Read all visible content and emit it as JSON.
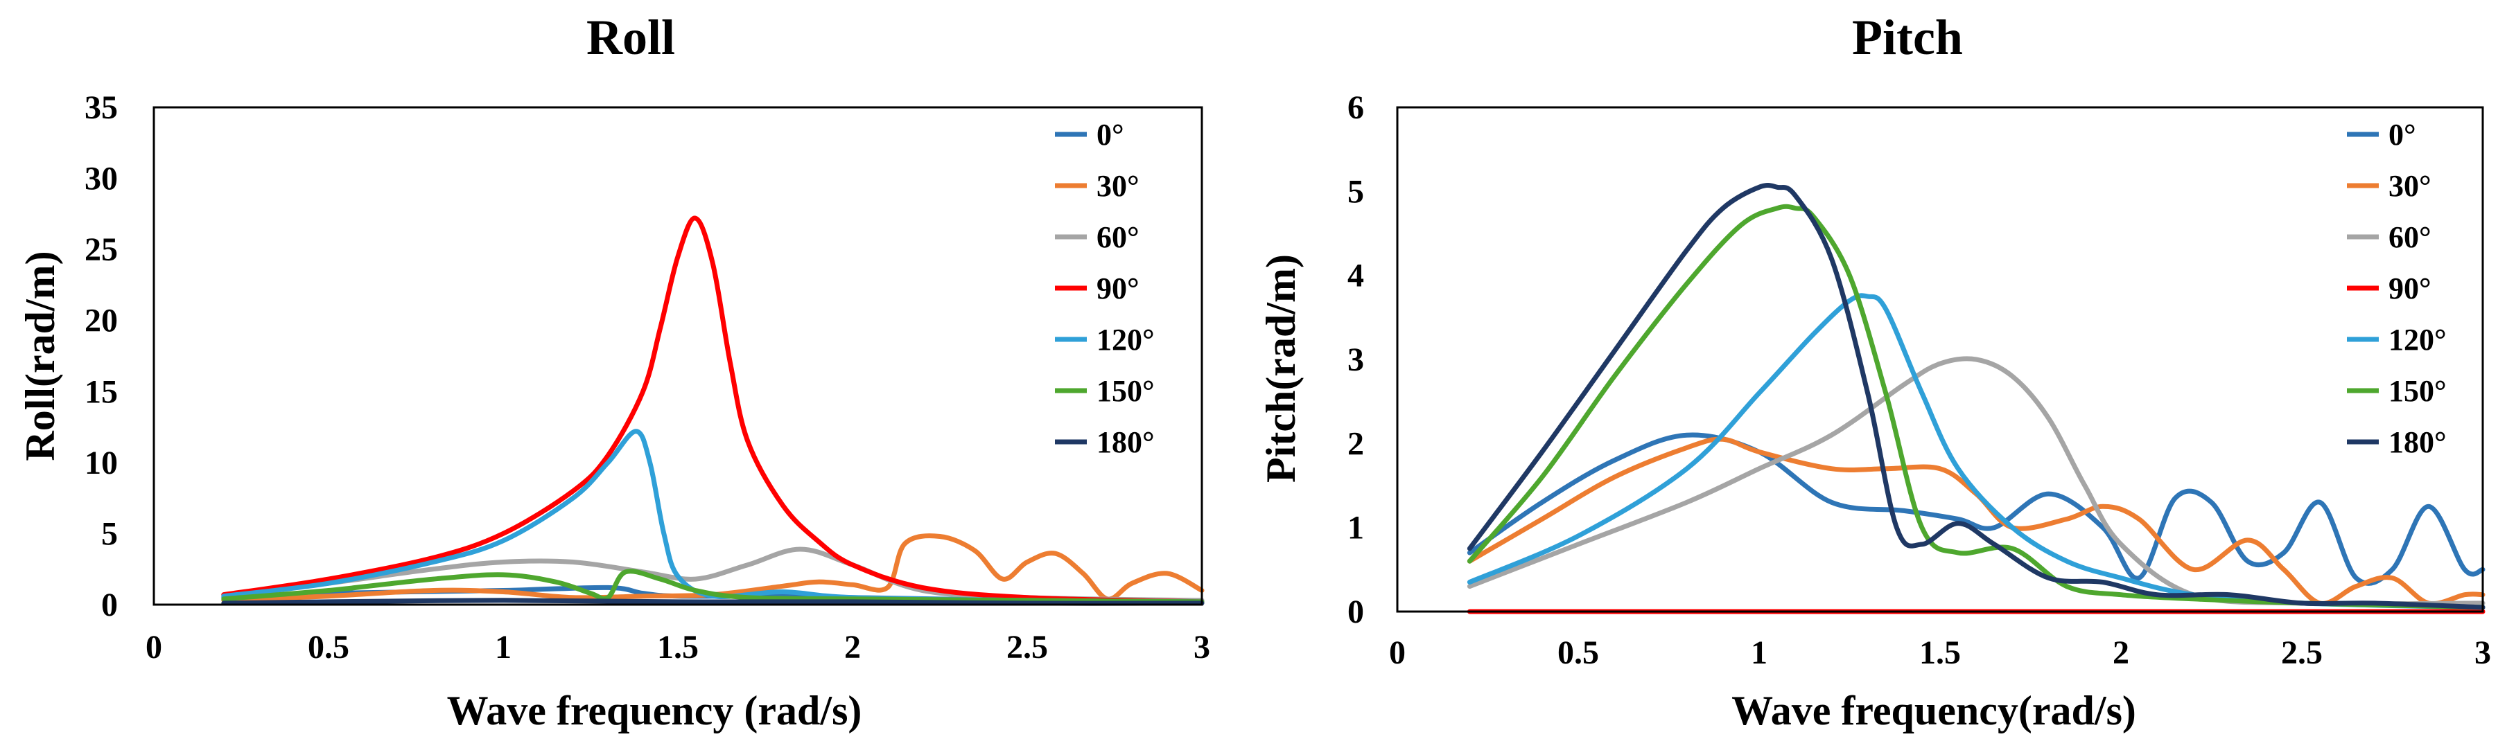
{
  "chart_data": [
    {
      "type": "line",
      "title": "Roll",
      "xlabel": "Wave frequency (rad/s)",
      "ylabel": "Roll(rad/m)",
      "xlim": [
        0,
        3
      ],
      "ylim": [
        0,
        35
      ],
      "xticks": [
        0,
        0.5,
        1,
        1.5,
        2,
        2.5,
        3
      ],
      "xtick_labels": [
        "0",
        "0.5",
        "1",
        "1.5",
        "2",
        "2.5",
        "3"
      ],
      "yticks": [
        0,
        5,
        10,
        15,
        20,
        25,
        30,
        35
      ],
      "ytick_labels": [
        "0",
        "5",
        "10",
        "15",
        "20",
        "25",
        "30",
        "35"
      ],
      "legend_position": "top-right",
      "grid": false,
      "series": [
        {
          "name": "0°",
          "color": "#2E75B6",
          "x": [
            0.2,
            0.5,
            1.0,
            1.3,
            1.4,
            1.5,
            1.8,
            2.0,
            2.5,
            3.0
          ],
          "y": [
            0.5,
            0.8,
            1.0,
            1.2,
            0.8,
            0.6,
            0.6,
            0.5,
            0.3,
            0.2
          ]
        },
        {
          "name": "30°",
          "color": "#ED7D31",
          "x": [
            0.2,
            0.5,
            0.8,
            1.0,
            1.2,
            1.4,
            1.6,
            1.8,
            1.9,
            2.0,
            2.1,
            2.15,
            2.25,
            2.35,
            2.43,
            2.5,
            2.58,
            2.66,
            2.73,
            2.8,
            2.9,
            3.0
          ],
          "y": [
            0.3,
            0.6,
            1.0,
            0.9,
            0.5,
            0.6,
            0.7,
            1.3,
            1.6,
            1.4,
            1.2,
            4.3,
            4.8,
            3.8,
            1.8,
            3.0,
            3.6,
            2.2,
            0.4,
            1.5,
            2.2,
            1.0
          ]
        },
        {
          "name": "60°",
          "color": "#A5A5A5",
          "x": [
            0.2,
            0.5,
            0.8,
            1.0,
            1.2,
            1.4,
            1.55,
            1.7,
            1.85,
            2.0,
            2.2,
            2.5,
            3.0
          ],
          "y": [
            0.6,
            1.5,
            2.5,
            3.0,
            3.0,
            2.3,
            1.8,
            2.8,
            3.9,
            2.8,
            1.0,
            0.5,
            0.3
          ]
        },
        {
          "name": "90°",
          "color": "#FF0000",
          "x": [
            0.2,
            0.5,
            0.8,
            1.0,
            1.2,
            1.3,
            1.4,
            1.45,
            1.5,
            1.55,
            1.6,
            1.65,
            1.7,
            1.8,
            1.9,
            2.0,
            2.2,
            2.5,
            3.0
          ],
          "y": [
            0.7,
            1.8,
            3.3,
            5.0,
            8.0,
            10.5,
            15.0,
            19.5,
            24.5,
            27.2,
            24.0,
            17.0,
            11.5,
            7.0,
            4.5,
            2.8,
            1.2,
            0.5,
            0.2
          ]
        },
        {
          "name": "120°",
          "color": "#2FA0D8",
          "x": [
            0.2,
            0.5,
            0.8,
            1.0,
            1.2,
            1.3,
            1.38,
            1.42,
            1.46,
            1.5,
            1.6,
            1.8,
            2.0,
            2.5,
            3.0
          ],
          "y": [
            0.6,
            1.5,
            3.0,
            4.5,
            7.5,
            10.0,
            12.2,
            10.0,
            5.0,
            2.0,
            0.6,
            0.9,
            0.5,
            0.3,
            0.2
          ]
        },
        {
          "name": "150°",
          "color": "#4EA72E",
          "x": [
            0.2,
            0.5,
            0.8,
            1.0,
            1.15,
            1.25,
            1.3,
            1.35,
            1.45,
            1.55,
            1.7,
            2.0,
            2.5,
            3.0
          ],
          "y": [
            0.4,
            1.0,
            1.8,
            2.1,
            1.6,
            0.8,
            0.5,
            2.3,
            1.8,
            1.0,
            0.5,
            0.4,
            0.3,
            0.2
          ]
        },
        {
          "name": "180°",
          "color": "#1F3864",
          "x": [
            0.2,
            0.5,
            1.0,
            1.5,
            2.0,
            2.5,
            3.0
          ],
          "y": [
            0.1,
            0.2,
            0.3,
            0.2,
            0.2,
            0.1,
            0.1
          ]
        }
      ]
    },
    {
      "type": "line",
      "title": "Pitch",
      "xlabel": "Wave frequency(rad/s)",
      "ylabel": "Pitch(rad/m)",
      "xlim": [
        0,
        3
      ],
      "ylim": [
        0,
        6
      ],
      "xticks": [
        0,
        0.5,
        1,
        1.5,
        2,
        2.5,
        3
      ],
      "xtick_labels": [
        "0",
        "0.5",
        "1",
        "1.5",
        "2",
        "2.5",
        "3"
      ],
      "yticks": [
        0,
        1,
        2,
        3,
        4,
        5,
        6
      ],
      "ytick_labels": [
        "0",
        "1",
        "2",
        "3",
        "4",
        "5",
        "6"
      ],
      "legend_position": "top-right",
      "grid": false,
      "series": [
        {
          "name": "0°",
          "color": "#2E75B6",
          "x": [
            0.2,
            0.4,
            0.6,
            0.8,
            1.0,
            1.2,
            1.4,
            1.55,
            1.65,
            1.8,
            1.95,
            2.05,
            2.15,
            2.25,
            2.35,
            2.45,
            2.55,
            2.65,
            2.75,
            2.85,
            2.95,
            3.0
          ],
          "y": [
            0.7,
            1.3,
            1.8,
            2.1,
            1.9,
            1.3,
            1.2,
            1.1,
            1.0,
            1.4,
            1.0,
            0.4,
            1.35,
            1.3,
            0.6,
            0.7,
            1.3,
            0.4,
            0.5,
            1.25,
            0.5,
            0.5
          ]
        },
        {
          "name": "30°",
          "color": "#ED7D31",
          "x": [
            0.2,
            0.4,
            0.6,
            0.8,
            0.9,
            1.0,
            1.2,
            1.35,
            1.5,
            1.6,
            1.7,
            1.85,
            1.95,
            2.05,
            2.2,
            2.35,
            2.45,
            2.55,
            2.65,
            2.75,
            2.85,
            2.95,
            3.0
          ],
          "y": [
            0.6,
            1.1,
            1.6,
            1.95,
            2.05,
            1.9,
            1.7,
            1.7,
            1.7,
            1.4,
            1.0,
            1.1,
            1.25,
            1.1,
            0.5,
            0.85,
            0.5,
            0.1,
            0.3,
            0.4,
            0.1,
            0.2,
            0.2
          ]
        },
        {
          "name": "60°",
          "color": "#A5A5A5",
          "x": [
            0.2,
            0.5,
            0.8,
            1.0,
            1.2,
            1.4,
            1.5,
            1.6,
            1.7,
            1.8,
            1.9,
            2.0,
            2.2,
            2.5,
            3.0
          ],
          "y": [
            0.3,
            0.8,
            1.3,
            1.7,
            2.1,
            2.7,
            2.95,
            3.0,
            2.8,
            2.3,
            1.5,
            0.8,
            0.2,
            0.1,
            0.1
          ]
        },
        {
          "name": "90°",
          "color": "#FF0000",
          "x": [
            0.2,
            1.0,
            2.0,
            3.0
          ],
          "y": [
            0.0,
            0.0,
            0.0,
            0.0
          ]
        },
        {
          "name": "120°",
          "color": "#2FA0D8",
          "x": [
            0.2,
            0.5,
            0.8,
            1.0,
            1.15,
            1.25,
            1.3,
            1.35,
            1.45,
            1.55,
            1.7,
            1.85,
            2.0,
            2.2,
            2.5,
            3.0
          ],
          "y": [
            0.35,
            0.9,
            1.7,
            2.6,
            3.3,
            3.7,
            3.75,
            3.6,
            2.6,
            1.7,
            1.0,
            0.6,
            0.4,
            0.2,
            0.1,
            0.05
          ]
        },
        {
          "name": "150°",
          "color": "#4EA72E",
          "x": [
            0.2,
            0.4,
            0.6,
            0.8,
            0.95,
            1.05,
            1.1,
            1.15,
            1.25,
            1.35,
            1.45,
            1.55,
            1.7,
            1.85,
            2.0,
            2.2,
            2.5,
            3.0
          ],
          "y": [
            0.6,
            1.6,
            2.8,
            3.9,
            4.6,
            4.8,
            4.8,
            4.7,
            4.0,
            2.6,
            1.0,
            0.7,
            0.75,
            0.3,
            0.2,
            0.15,
            0.1,
            0.05
          ]
        },
        {
          "name": "180°",
          "color": "#1F3864",
          "x": [
            0.2,
            0.4,
            0.6,
            0.8,
            0.9,
            1.0,
            1.05,
            1.1,
            1.2,
            1.3,
            1.38,
            1.45,
            1.55,
            1.65,
            1.8,
            1.95,
            2.1,
            2.3,
            2.5,
            2.7,
            3.0
          ],
          "y": [
            0.75,
            1.9,
            3.1,
            4.3,
            4.8,
            5.05,
            5.05,
            4.95,
            4.2,
            2.6,
            1.0,
            0.8,
            1.05,
            0.8,
            0.4,
            0.35,
            0.2,
            0.2,
            0.1,
            0.1,
            0.05
          ]
        }
      ]
    }
  ]
}
